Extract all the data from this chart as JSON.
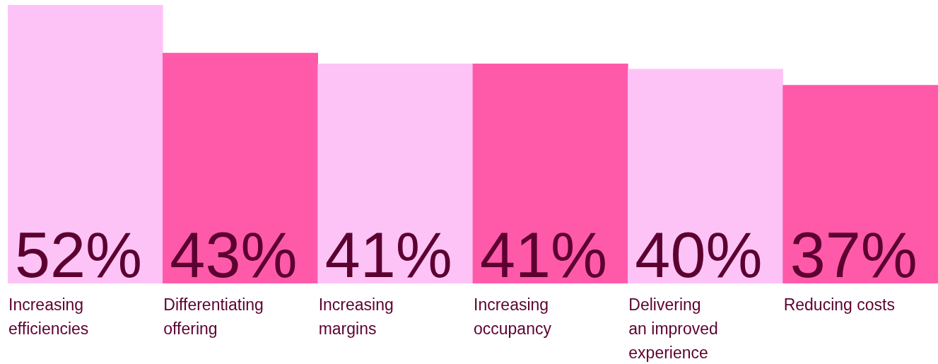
{
  "chart_data": {
    "type": "bar",
    "categories": [
      "Increasing\nefficiencies",
      "Differentiating\noffering",
      "Increasing\nmargins",
      "Increasing\noccupancy",
      "Delivering\nan improved\nexperience",
      "Reducing costs"
    ],
    "values": [
      52,
      43,
      41,
      41,
      40,
      37
    ],
    "colors": [
      "#fdc3f6",
      "#ff5aaa",
      "#fdc3f6",
      "#ff5aaa",
      "#fdc3f6",
      "#ff5aaa"
    ],
    "value_labels": [
      "52%",
      "43%",
      "41%",
      "41%",
      "40%",
      "37%"
    ]
  }
}
